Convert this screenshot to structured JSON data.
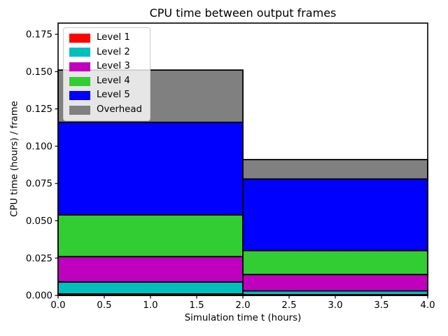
{
  "chart_data": {
    "type": "bar",
    "stacked": true,
    "title": "CPU time between output frames",
    "xlabel": "Simulation time t (hours)",
    "ylabel": "CPU time (hours) / frame",
    "xlim": [
      0,
      4
    ],
    "ylim": [
      0,
      0.1825
    ],
    "grid": false,
    "x_edges": [
      0,
      2,
      4
    ],
    "x_ticks": {
      "values": [
        0.0,
        0.5,
        1.0,
        1.5,
        2.0,
        2.5,
        3.0,
        3.5,
        4.0
      ],
      "labels": [
        "0.0",
        "0.5",
        "1.0",
        "1.5",
        "2.0",
        "2.5",
        "3.0",
        "3.5",
        "4.0"
      ]
    },
    "y_ticks": {
      "values": [
        0.0,
        0.025,
        0.05,
        0.075,
        0.1,
        0.125,
        0.15,
        0.175
      ],
      "labels": [
        "0.000",
        "0.025",
        "0.050",
        "0.075",
        "0.100",
        "0.125",
        "0.150",
        "0.175"
      ]
    },
    "series": [
      {
        "name": "Level 1",
        "color": "#ff0000",
        "values": [
          0.001,
          0.0005
        ]
      },
      {
        "name": "Level 2",
        "color": "#00bfbf",
        "values": [
          0.008,
          0.0025
        ]
      },
      {
        "name": "Level 3",
        "color": "#bf00bf",
        "values": [
          0.017,
          0.011
        ]
      },
      {
        "name": "Level 4",
        "color": "#32cd32",
        "values": [
          0.028,
          0.016
        ]
      },
      {
        "name": "Level 5",
        "color": "#0000ff",
        "values": [
          0.062,
          0.048
        ]
      },
      {
        "name": "Overhead",
        "color": "#808080",
        "values": [
          0.035,
          0.013
        ]
      }
    ],
    "stack_totals": [
      0.151,
      0.091
    ],
    "bar_edge_color": "#000000",
    "legend": {
      "position": "upper left",
      "entries": [
        "Level 1",
        "Level 2",
        "Level 3",
        "Level 4",
        "Level 5",
        "Overhead"
      ]
    }
  }
}
